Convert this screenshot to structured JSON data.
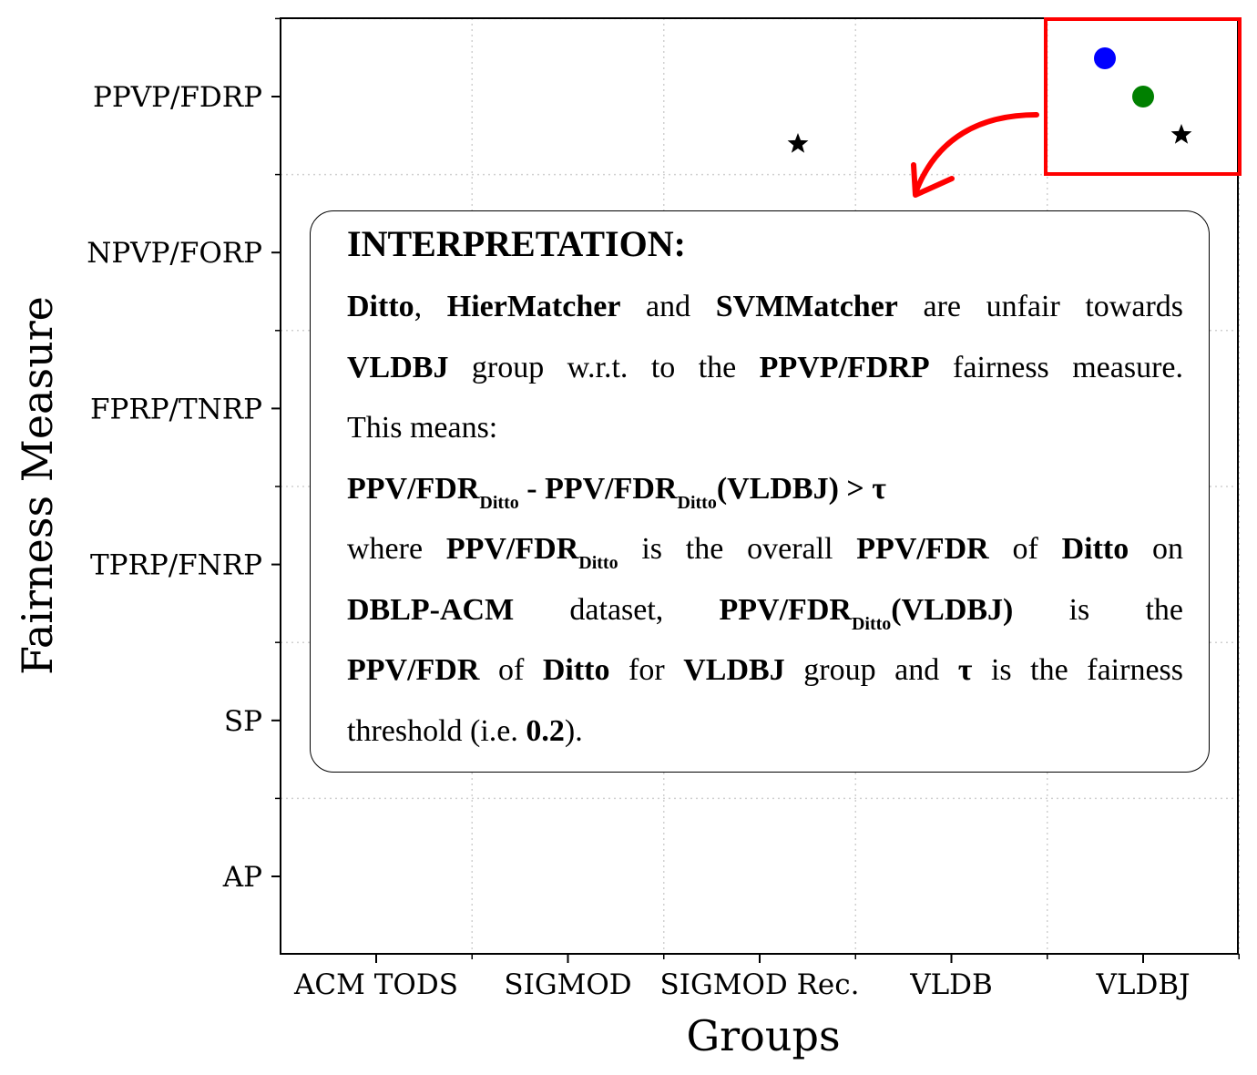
{
  "chart_data": {
    "type": "scatter",
    "xlabel": "Groups",
    "ylabel": "Fairness Measure",
    "categories": [
      "ACM TODS",
      "SIGMOD",
      "SIGMOD Rec.",
      "VLDB",
      "VLDBJ"
    ],
    "y_categories": [
      "AP",
      "SP",
      "TPRP/FNRP",
      "FPRP/TNRP",
      "NPVP/FORP",
      "PPVP/FDRP"
    ],
    "grid": true,
    "points": [
      {
        "x": "SIGMOD Rec.",
        "y": "PPVP/FDRP",
        "marker": "star",
        "color": "#000000"
      },
      {
        "x": "VLDBJ",
        "y": "PPVP/FDRP",
        "marker": "circle",
        "color": "#0000ff"
      },
      {
        "x": "VLDBJ",
        "y": "PPVP/FDRP",
        "marker": "circle",
        "color": "#008000"
      },
      {
        "x": "VLDBJ",
        "y": "PPVP/FDRP",
        "marker": "star",
        "color": "#000000"
      }
    ],
    "highlight_box_color": "#ff0000",
    "arrow_color": "#ff0000"
  },
  "interpretation": {
    "heading": "INTERPRETATION:",
    "l1": {
      "a": "Ditto",
      "b": ", ",
      "c": "HierMatcher",
      "d": " and ",
      "e": "SVMMatcher",
      "f": " are unfair towards"
    },
    "l2": {
      "a": "VLDBJ",
      "b": " group w.r.t. to the ",
      "c": "PPVP/FDRP",
      "d": " fairness measure."
    },
    "l3": "This means:",
    "l4": {
      "a": "PPV/FDR",
      "a_sub": "Ditto",
      "b": " - PPV/FDR",
      "b_sub": "Ditto",
      "c": "(VLDBJ) > τ"
    },
    "l5": {
      "a": "where ",
      "b": "PPV/FDR",
      "b_sub": "Ditto",
      "c": " is the overall ",
      "d": "PPV/FDR",
      "e": " of ",
      "f": "Ditto",
      "g": " on"
    },
    "l6": {
      "a": "DBLP-ACM",
      "b": " dataset, ",
      "c": "PPV/FDR",
      "c_sub": "Ditto",
      "d": "(VLDBJ)",
      "e": " is the"
    },
    "l7": {
      "a": "PPV/FDR",
      "b": " of ",
      "c": "Ditto",
      "d": " for ",
      "e": "VLDBJ",
      "f": " group and ",
      "g": "τ",
      "h": " is the fairness"
    },
    "l8": {
      "a": "threshold (i.e. ",
      "b": "0.2",
      "c": ")."
    }
  }
}
